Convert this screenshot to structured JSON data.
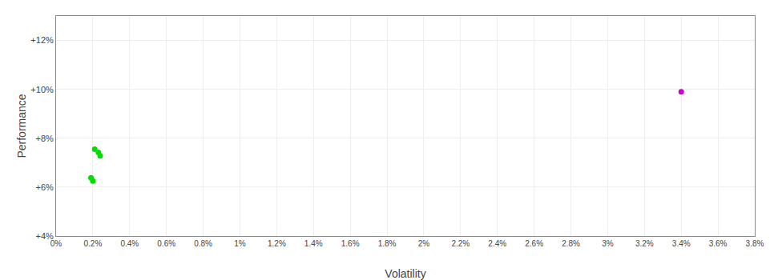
{
  "chart_data": {
    "type": "scatter",
    "xlabel": "Volatility",
    "ylabel": "Performance",
    "xlim": [
      0,
      0.038
    ],
    "ylim": [
      0.04,
      0.13
    ],
    "xticks": [
      {
        "value": 0,
        "label": "0%"
      },
      {
        "value": 0.002,
        "label": "0.2%"
      },
      {
        "value": 0.004,
        "label": "0.4%"
      },
      {
        "value": 0.006,
        "label": "0.6%"
      },
      {
        "value": 0.008,
        "label": "0.8%"
      },
      {
        "value": 0.01,
        "label": "1%"
      },
      {
        "value": 0.012,
        "label": "1.2%"
      },
      {
        "value": 0.014,
        "label": "1.4%"
      },
      {
        "value": 0.016,
        "label": "1.6%"
      },
      {
        "value": 0.018,
        "label": "1.8%"
      },
      {
        "value": 0.02,
        "label": "2%"
      },
      {
        "value": 0.022,
        "label": "2.2%"
      },
      {
        "value": 0.024,
        "label": "2.4%"
      },
      {
        "value": 0.026,
        "label": "2.6%"
      },
      {
        "value": 0.028,
        "label": "2.8%"
      },
      {
        "value": 0.03,
        "label": "3%"
      },
      {
        "value": 0.032,
        "label": "3.2%"
      },
      {
        "value": 0.034,
        "label": "3.4%"
      },
      {
        "value": 0.036,
        "label": "3.6%"
      },
      {
        "value": 0.038,
        "label": "3.8%"
      }
    ],
    "yticks": [
      {
        "value": 0.04,
        "label": "+4%"
      },
      {
        "value": 0.06,
        "label": "+6%"
      },
      {
        "value": 0.08,
        "label": "+8%"
      },
      {
        "value": 0.1,
        "label": "+10%"
      },
      {
        "value": 0.12,
        "label": "+12%"
      }
    ],
    "grid": true,
    "series": [
      {
        "color": "#00dd00",
        "x": [
          0.0021,
          0.0023,
          0.0024,
          0.0019,
          0.002
        ],
        "values": [
          0.0755,
          0.0742,
          0.0728,
          0.0638,
          0.0625
        ]
      },
      {
        "color": "#cc00cc",
        "x": [
          0.034
        ],
        "values": [
          0.099
        ]
      }
    ]
  }
}
